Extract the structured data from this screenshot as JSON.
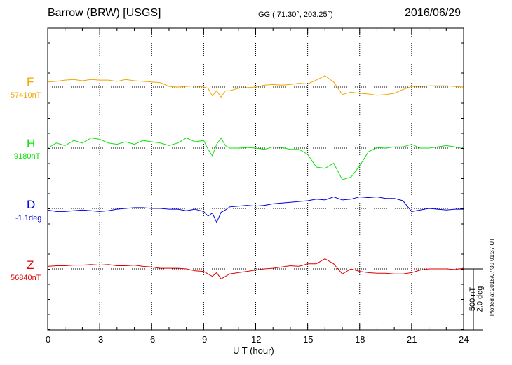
{
  "header": {
    "station": "Barrow (BRW)  [USGS]",
    "coords": "GG ( 71.30°, 203.25°)",
    "date": "2016/06/29"
  },
  "x_axis": {
    "label": "U T (hour)",
    "ticks": [
      "0",
      "3",
      "6",
      "9",
      "12",
      "15",
      "18",
      "21",
      "24"
    ]
  },
  "scale": {
    "nt": "500 nT",
    "deg": "2.0 deg"
  },
  "plotted_note": "Plotted at 2016/07/30 01:37 UT",
  "components": [
    {
      "name": "F",
      "baseline": "57410nT",
      "color": "#f0a800"
    },
    {
      "name": "H",
      "baseline": "9180nT",
      "color": "#10e010"
    },
    {
      "name": "D",
      "baseline": "-1.1deg",
      "color": "#0000e0"
    },
    {
      "name": "Z",
      "baseline": "56840nT",
      "color": "#e00000"
    }
  ],
  "chart_data": {
    "type": "line",
    "title": "Barrow (BRW)  [USGS]",
    "xlabel": "U T (hour)",
    "xlim": [
      0,
      24
    ],
    "grid": true,
    "units": "nT / deg offset from baseline (scale bar: 500 nT, 2.0 deg)",
    "x": [
      0,
      0.5,
      1,
      1.5,
      2,
      2.5,
      3,
      3.5,
      4,
      4.5,
      5,
      5.5,
      6,
      6.5,
      7,
      7.5,
      8,
      8.5,
      9,
      9.25,
      9.5,
      9.75,
      10,
      10.25,
      10.5,
      11,
      11.5,
      12,
      12.5,
      13,
      13.5,
      14,
      14.5,
      15,
      15.5,
      16,
      16.5,
      17,
      17.5,
      18,
      18.5,
      19,
      19.5,
      20,
      20.5,
      21,
      21.5,
      22,
      22.5,
      23,
      23.5,
      24
    ],
    "series": [
      {
        "name": "F",
        "baseline": "57410nT",
        "values": [
          40,
          45,
          55,
          60,
          50,
          60,
          55,
          55,
          45,
          60,
          50,
          45,
          40,
          35,
          5,
          0,
          5,
          10,
          0,
          -10,
          -70,
          -30,
          -80,
          -30,
          -30,
          -10,
          -5,
          0,
          15,
          20,
          15,
          20,
          30,
          25,
          55,
          90,
          40,
          -60,
          -40,
          -50,
          -55,
          -65,
          -60,
          -50,
          -20,
          5,
          5,
          10,
          10,
          10,
          5,
          0
        ]
      },
      {
        "name": "H",
        "baseline": "9180nT",
        "values": [
          0,
          40,
          20,
          60,
          40,
          80,
          70,
          40,
          30,
          50,
          30,
          60,
          50,
          40,
          20,
          40,
          80,
          50,
          60,
          -10,
          -60,
          30,
          80,
          20,
          0,
          0,
          5,
          0,
          -10,
          10,
          5,
          -10,
          -10,
          -50,
          -150,
          -160,
          -120,
          -250,
          -230,
          -140,
          -30,
          5,
          0,
          10,
          10,
          30,
          0,
          0,
          10,
          20,
          10,
          -5
        ]
      },
      {
        "name": "D",
        "baseline": "-1.1deg",
        "values": [
          -0.1,
          -0.2,
          -0.2,
          -0.15,
          -0.1,
          -0.15,
          -0.2,
          -0.15,
          -0.05,
          0.0,
          0.05,
          0.05,
          0.0,
          0.0,
          -0.05,
          -0.05,
          -0.15,
          -0.05,
          -0.2,
          -0.5,
          -0.3,
          -0.9,
          -0.25,
          -0.1,
          0.1,
          0.15,
          0.2,
          0.15,
          0.2,
          0.3,
          0.35,
          0.4,
          0.45,
          0.5,
          0.6,
          0.55,
          0.75,
          0.55,
          0.6,
          0.75,
          0.7,
          0.75,
          0.65,
          0.65,
          0.5,
          -0.2,
          -0.1,
          0.0,
          -0.05,
          -0.1,
          -0.05,
          -0.05
        ]
      },
      {
        "name": "Z",
        "baseline": "56840nT",
        "values": [
          20,
          25,
          25,
          30,
          30,
          35,
          30,
          35,
          25,
          25,
          30,
          20,
          15,
          5,
          5,
          5,
          0,
          -15,
          -20,
          -40,
          -60,
          -30,
          -80,
          -60,
          -40,
          -30,
          -20,
          -10,
          0,
          5,
          15,
          25,
          20,
          40,
          40,
          80,
          40,
          -40,
          0,
          -20,
          -30,
          -35,
          -35,
          -40,
          -40,
          -30,
          -10,
          0,
          0,
          0,
          -5,
          5
        ]
      }
    ]
  }
}
